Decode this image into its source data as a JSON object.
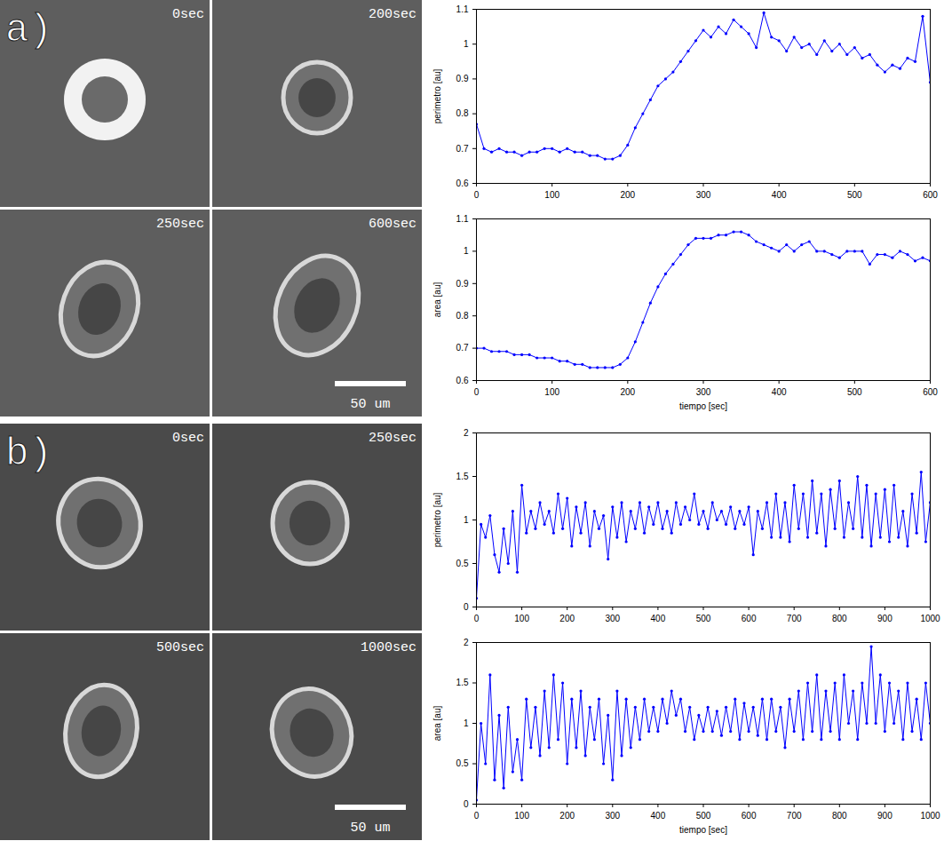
{
  "panels": [
    {
      "letter": "a)",
      "frames": [
        "0sec",
        "200sec",
        "250sec",
        "600sec"
      ],
      "scale_bar": "50 um"
    },
    {
      "letter": "b)",
      "frames": [
        "0sec",
        "250sec",
        "500sec",
        "1000sec"
      ],
      "scale_bar": "50 um"
    }
  ],
  "chart_data": [
    {
      "type": "line",
      "ylabel": "perimetro [au]",
      "color": "#0000ff",
      "marker": "dot",
      "line_style": "solid",
      "grid": false,
      "xlim": [
        0,
        600
      ],
      "xticks": [
        0,
        100,
        200,
        300,
        400,
        500,
        600
      ],
      "ylim": [
        0.6,
        1.1
      ],
      "yticks": [
        0.6,
        0.7,
        0.8,
        0.9,
        1,
        1.1
      ],
      "x": [
        0,
        10,
        20,
        30,
        40,
        50,
        60,
        70,
        80,
        90,
        100,
        110,
        120,
        130,
        140,
        150,
        160,
        170,
        180,
        190,
        200,
        210,
        220,
        230,
        240,
        250,
        260,
        270,
        280,
        290,
        300,
        310,
        320,
        330,
        340,
        350,
        360,
        370,
        380,
        390,
        400,
        410,
        420,
        430,
        440,
        450,
        460,
        470,
        480,
        490,
        500,
        510,
        520,
        530,
        540,
        550,
        560,
        570,
        580,
        590,
        600
      ],
      "values": [
        0.77,
        0.7,
        0.69,
        0.7,
        0.69,
        0.69,
        0.68,
        0.69,
        0.69,
        0.7,
        0.7,
        0.69,
        0.7,
        0.69,
        0.69,
        0.68,
        0.68,
        0.67,
        0.67,
        0.68,
        0.71,
        0.76,
        0.8,
        0.84,
        0.88,
        0.9,
        0.92,
        0.95,
        0.98,
        1.01,
        1.04,
        1.02,
        1.05,
        1.03,
        1.07,
        1.05,
        1.03,
        0.99,
        1.09,
        1.02,
        1.01,
        0.98,
        1.02,
        0.99,
        1.0,
        0.97,
        1.01,
        0.98,
        1.0,
        0.97,
        0.99,
        0.96,
        0.97,
        0.94,
        0.92,
        0.94,
        0.93,
        0.96,
        0.95,
        1.08,
        0.89
      ]
    },
    {
      "type": "line",
      "ylabel": "area [au]",
      "xlabel": "tiempo [sec]",
      "color": "#0000ff",
      "marker": "dot",
      "line_style": "solid",
      "grid": false,
      "xlim": [
        0,
        600
      ],
      "xticks": [
        0,
        100,
        200,
        300,
        400,
        500,
        600
      ],
      "ylim": [
        0.6,
        1.1
      ],
      "yticks": [
        0.6,
        0.7,
        0.8,
        0.9,
        1,
        1.1
      ],
      "x": [
        0,
        10,
        20,
        30,
        40,
        50,
        60,
        70,
        80,
        90,
        100,
        110,
        120,
        130,
        140,
        150,
        160,
        170,
        180,
        190,
        200,
        210,
        220,
        230,
        240,
        250,
        260,
        270,
        280,
        290,
        300,
        310,
        320,
        330,
        340,
        350,
        360,
        370,
        380,
        390,
        400,
        410,
        420,
        430,
        440,
        450,
        460,
        470,
        480,
        490,
        500,
        510,
        520,
        530,
        540,
        550,
        560,
        570,
        580,
        590,
        600
      ],
      "values": [
        0.7,
        0.7,
        0.69,
        0.69,
        0.69,
        0.68,
        0.68,
        0.68,
        0.67,
        0.67,
        0.67,
        0.66,
        0.66,
        0.65,
        0.65,
        0.64,
        0.64,
        0.64,
        0.64,
        0.65,
        0.67,
        0.72,
        0.78,
        0.84,
        0.89,
        0.93,
        0.96,
        0.99,
        1.02,
        1.04,
        1.04,
        1.04,
        1.05,
        1.05,
        1.06,
        1.06,
        1.05,
        1.03,
        1.02,
        1.01,
        1.0,
        1.02,
        1.0,
        1.02,
        1.03,
        1.0,
        1.0,
        0.99,
        0.98,
        1.0,
        1.0,
        1.0,
        0.96,
        0.99,
        0.99,
        0.98,
        1.0,
        0.99,
        0.97,
        0.98,
        0.97
      ]
    },
    {
      "type": "line",
      "ylabel": "perimetro [au]",
      "color": "#0000ff",
      "marker": "dot",
      "line_style": "solid",
      "grid": false,
      "xlim": [
        0,
        1000
      ],
      "xticks": [
        0,
        100,
        200,
        300,
        400,
        500,
        600,
        700,
        800,
        900,
        1000
      ],
      "ylim": [
        0,
        2
      ],
      "yticks": [
        0,
        0.5,
        1,
        1.5,
        2
      ],
      "x": [
        0,
        10,
        20,
        30,
        40,
        50,
        60,
        70,
        80,
        90,
        100,
        110,
        120,
        130,
        140,
        150,
        160,
        170,
        180,
        190,
        200,
        210,
        220,
        230,
        240,
        250,
        260,
        270,
        280,
        290,
        300,
        310,
        320,
        330,
        340,
        350,
        360,
        370,
        380,
        390,
        400,
        410,
        420,
        430,
        440,
        450,
        460,
        470,
        480,
        490,
        500,
        510,
        520,
        530,
        540,
        550,
        560,
        570,
        580,
        590,
        600,
        610,
        620,
        630,
        640,
        650,
        660,
        670,
        680,
        690,
        700,
        710,
        720,
        730,
        740,
        750,
        760,
        770,
        780,
        790,
        800,
        810,
        820,
        830,
        840,
        850,
        860,
        870,
        880,
        890,
        900,
        910,
        920,
        930,
        940,
        950,
        960,
        970,
        980,
        990,
        1000
      ],
      "values": [
        0.1,
        0.95,
        0.8,
        1.05,
        0.6,
        0.4,
        0.9,
        0.5,
        1.1,
        0.4,
        1.4,
        0.85,
        1.1,
        0.9,
        1.2,
        0.95,
        1.1,
        0.85,
        1.3,
        0.9,
        1.25,
        0.7,
        1.15,
        0.85,
        1.2,
        0.7,
        1.1,
        0.9,
        1.05,
        0.55,
        1.15,
        0.8,
        1.2,
        0.75,
        1.1,
        0.9,
        1.2,
        0.85,
        1.15,
        0.95,
        1.2,
        0.9,
        1.1,
        0.85,
        1.2,
        0.95,
        1.15,
        1.0,
        1.3,
        0.95,
        1.1,
        0.9,
        1.2,
        1.0,
        1.1,
        0.95,
        1.15,
        0.9,
        1.1,
        0.95,
        1.15,
        0.6,
        1.1,
        0.9,
        1.2,
        0.8,
        1.3,
        0.8,
        1.2,
        0.75,
        1.4,
        0.9,
        1.3,
        0.8,
        1.45,
        0.85,
        1.3,
        0.7,
        1.35,
        0.9,
        1.45,
        0.8,
        1.2,
        0.9,
        1.5,
        0.8,
        1.4,
        0.7,
        1.3,
        0.8,
        1.35,
        0.75,
        1.4,
        0.8,
        1.1,
        0.7,
        1.3,
        0.85,
        1.55,
        0.75,
        1.2
      ]
    },
    {
      "type": "line",
      "ylabel": "area [au]",
      "xlabel": "tiempo [sec]",
      "color": "#0000ff",
      "marker": "dot",
      "line_style": "solid",
      "grid": false,
      "xlim": [
        0,
        1000
      ],
      "xticks": [
        0,
        100,
        200,
        300,
        400,
        500,
        600,
        700,
        800,
        900,
        1000
      ],
      "ylim": [
        0,
        2
      ],
      "yticks": [
        0,
        0.5,
        1,
        1.5,
        2
      ],
      "x": [
        0,
        10,
        20,
        30,
        40,
        50,
        60,
        70,
        80,
        90,
        100,
        110,
        120,
        130,
        140,
        150,
        160,
        170,
        180,
        190,
        200,
        210,
        220,
        230,
        240,
        250,
        260,
        270,
        280,
        290,
        300,
        310,
        320,
        330,
        340,
        350,
        360,
        370,
        380,
        390,
        400,
        410,
        420,
        430,
        440,
        450,
        460,
        470,
        480,
        490,
        500,
        510,
        520,
        530,
        540,
        550,
        560,
        570,
        580,
        590,
        600,
        610,
        620,
        630,
        640,
        650,
        660,
        670,
        680,
        690,
        700,
        710,
        720,
        730,
        740,
        750,
        760,
        770,
        780,
        790,
        800,
        810,
        820,
        830,
        840,
        850,
        860,
        870,
        880,
        890,
        900,
        910,
        920,
        930,
        940,
        950,
        960,
        970,
        980,
        990,
        1000
      ],
      "values": [
        0.05,
        1.0,
        0.5,
        1.6,
        0.3,
        1.1,
        0.2,
        1.2,
        0.4,
        0.8,
        0.3,
        1.3,
        0.7,
        1.2,
        0.6,
        1.4,
        0.7,
        1.6,
        0.8,
        1.5,
        0.5,
        1.3,
        0.7,
        1.4,
        0.6,
        1.2,
        0.8,
        1.3,
        0.5,
        1.1,
        0.3,
        1.4,
        0.6,
        1.3,
        0.7,
        1.2,
        0.8,
        1.3,
        0.9,
        1.2,
        0.9,
        1.3,
        1.0,
        1.4,
        1.1,
        1.3,
        0.9,
        1.2,
        0.8,
        1.1,
        0.9,
        1.2,
        0.9,
        1.15,
        0.85,
        1.2,
        0.9,
        1.3,
        0.8,
        1.25,
        0.9,
        1.2,
        0.85,
        1.3,
        0.8,
        1.3,
        0.9,
        1.2,
        0.7,
        1.3,
        0.9,
        1.4,
        0.8,
        1.5,
        0.9,
        1.6,
        0.8,
        1.4,
        0.9,
        1.5,
        0.8,
        1.6,
        1.0,
        1.4,
        0.8,
        1.5,
        1.0,
        1.95,
        1.0,
        1.6,
        0.9,
        1.5,
        1.0,
        1.4,
        0.8,
        1.5,
        0.9,
        1.3,
        0.8,
        1.5,
        1.0
      ]
    }
  ]
}
